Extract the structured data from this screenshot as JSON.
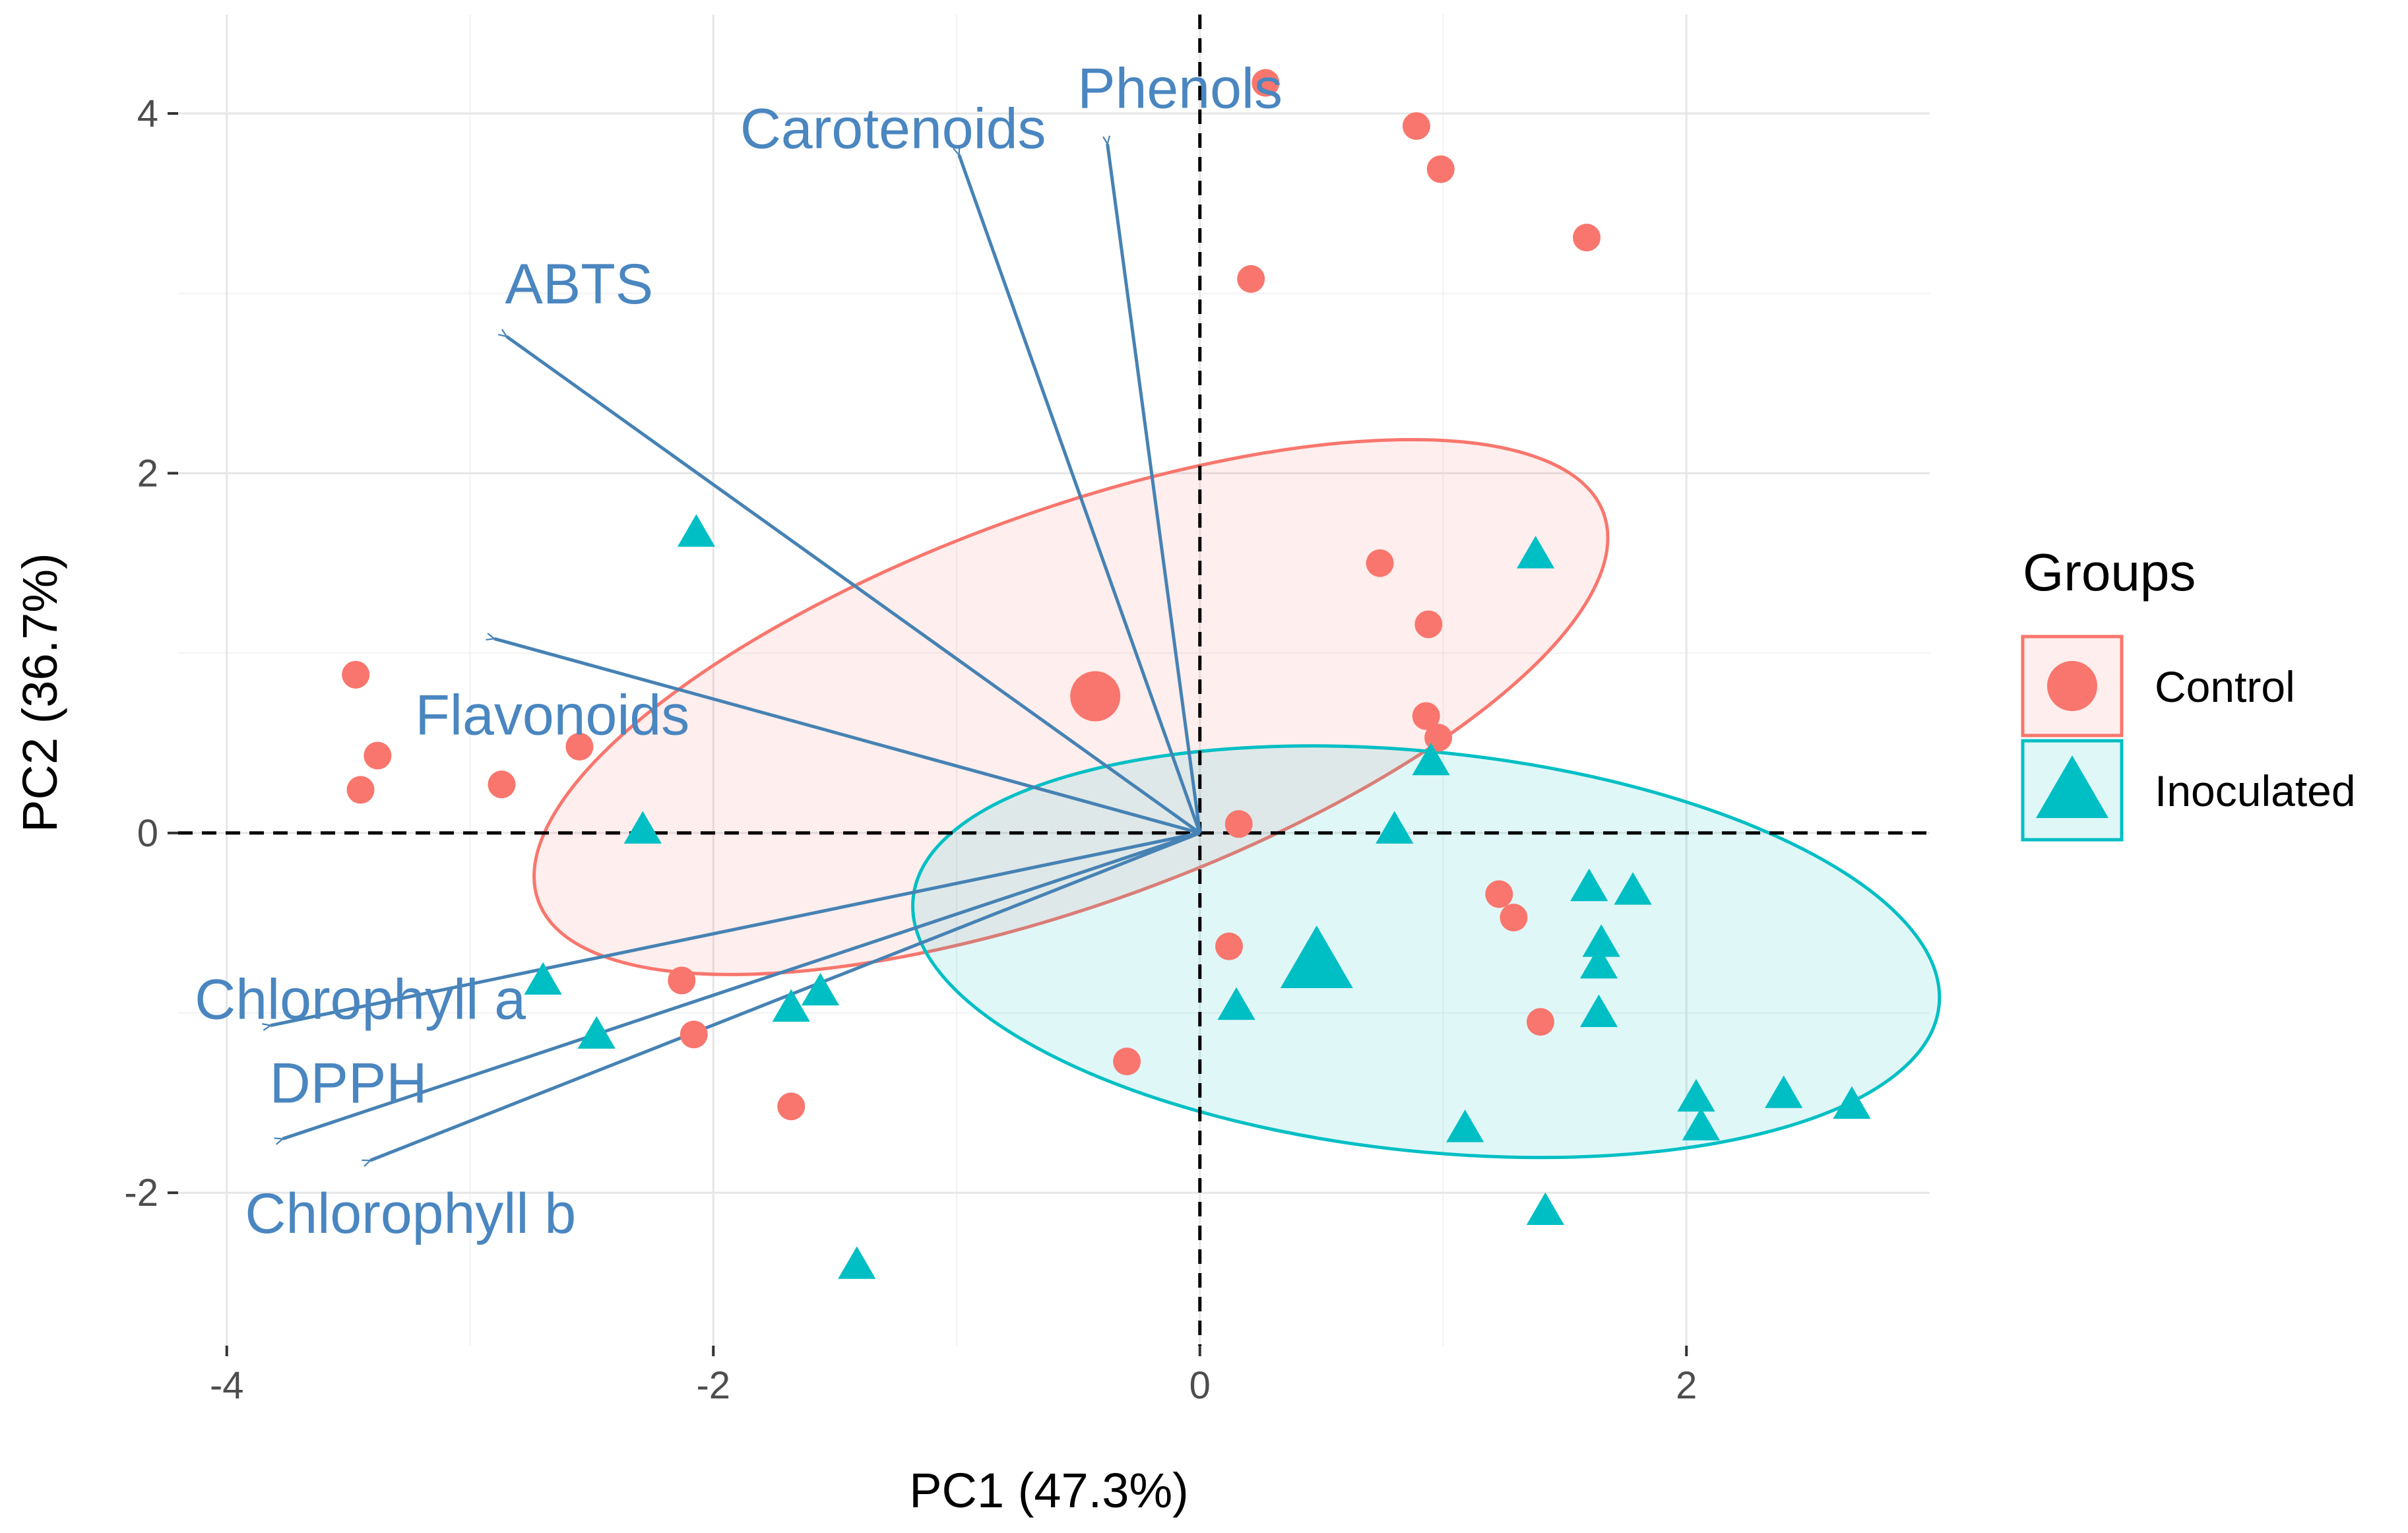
{
  "chart_data": {
    "type": "scatter",
    "subtype": "pca-biplot",
    "title": "",
    "xlabel": "PC1 (47.3%)",
    "ylabel": "PC2 (36.7%)",
    "xlim": [
      -4.2,
      3.0
    ],
    "ylim": [
      -2.85,
      4.55
    ],
    "xticks": [
      -4,
      -2,
      0,
      2
    ],
    "yticks": [
      -2,
      0,
      2,
      4
    ],
    "xtick_labels": [
      "-4",
      "-2",
      "0",
      "2"
    ],
    "ytick_labels": [
      "-2",
      "0",
      "2",
      "4"
    ],
    "grid": true,
    "reference_lines": {
      "x": 0,
      "y": 0,
      "style": "dashed"
    },
    "legend": {
      "title": "Groups",
      "position": "right",
      "entries": [
        {
          "label": "Control",
          "color": "#F8766D",
          "shape": "circle"
        },
        {
          "label": "Inoculated",
          "color": "#00BFC4",
          "shape": "triangle"
        }
      ]
    },
    "series": [
      {
        "name": "Control",
        "color": "#F8766D",
        "shape": "circle",
        "points": [
          {
            "x": 0.27,
            "y": 4.17
          },
          {
            "x": 0.89,
            "y": 3.93
          },
          {
            "x": 0.99,
            "y": 3.69
          },
          {
            "x": 1.59,
            "y": 3.31
          },
          {
            "x": 0.21,
            "y": 3.08
          },
          {
            "x": 0.74,
            "y": 1.5
          },
          {
            "x": 0.94,
            "y": 1.16
          },
          {
            "x": 0.93,
            "y": 0.65
          },
          {
            "x": 0.98,
            "y": 0.53
          },
          {
            "x": 0.16,
            "y": 0.05
          },
          {
            "x": 1.23,
            "y": -0.34
          },
          {
            "x": 1.29,
            "y": -0.47
          },
          {
            "x": 0.12,
            "y": -0.63
          },
          {
            "x": 1.4,
            "y": -1.05
          },
          {
            "x": -0.3,
            "y": -1.27
          },
          {
            "x": -1.68,
            "y": -1.52
          },
          {
            "x": -2.13,
            "y": -0.82
          },
          {
            "x": -2.08,
            "y": -1.12
          },
          {
            "x": -2.55,
            "y": 0.48
          },
          {
            "x": -2.87,
            "y": 0.27
          },
          {
            "x": -3.47,
            "y": 0.88
          },
          {
            "x": -3.38,
            "y": 0.43
          },
          {
            "x": -3.45,
            "y": 0.24
          }
        ],
        "centroid": {
          "x": -0.43,
          "y": 0.76
        },
        "ellipse": {
          "center": [
            -0.53,
            0.7
          ],
          "semi_axes": [
            2.33,
            1.09
          ],
          "angle_deg": 20
        }
      },
      {
        "name": "Inoculated",
        "color": "#00BFC4",
        "shape": "triangle",
        "points": [
          {
            "x": -2.07,
            "y": 1.66
          },
          {
            "x": -2.29,
            "y": 0.01
          },
          {
            "x": -2.7,
            "y": -0.83
          },
          {
            "x": -2.48,
            "y": -1.13
          },
          {
            "x": -1.68,
            "y": -0.98
          },
          {
            "x": -1.56,
            "y": -0.89
          },
          {
            "x": -1.41,
            "y": -2.41
          },
          {
            "x": 0.15,
            "y": -0.97
          },
          {
            "x": 0.8,
            "y": 0.01
          },
          {
            "x": 0.95,
            "y": 0.39
          },
          {
            "x": 1.38,
            "y": 1.54
          },
          {
            "x": 1.6,
            "y": -0.31
          },
          {
            "x": 1.78,
            "y": -0.33
          },
          {
            "x": 1.65,
            "y": -0.62
          },
          {
            "x": 1.64,
            "y": -0.74
          },
          {
            "x": 1.64,
            "y": -1.01
          },
          {
            "x": 1.09,
            "y": -1.65
          },
          {
            "x": 1.42,
            "y": -2.11
          },
          {
            "x": 2.04,
            "y": -1.48
          },
          {
            "x": 2.06,
            "y": -1.64
          },
          {
            "x": 2.4,
            "y": -1.46
          },
          {
            "x": 2.68,
            "y": -1.52
          }
        ],
        "centroid": {
          "x": 0.48,
          "y": -0.73
        },
        "ellipse": {
          "center": [
            0.93,
            -0.66
          ],
          "semi_axes": [
            2.12,
            1.11
          ],
          "angle_deg": -6
        }
      }
    ],
    "loadings": [
      {
        "label": "Phenols",
        "x": -0.38,
        "y": 3.83
      },
      {
        "label": "Carotenoids",
        "x": -0.99,
        "y": 3.77
      },
      {
        "label": "ABTS",
        "x": -2.85,
        "y": 2.76
      },
      {
        "label": "Flavonoids",
        "x": -2.9,
        "y": 1.08
      },
      {
        "label": "Chlorophyll a",
        "x": -3.82,
        "y": -1.07
      },
      {
        "label": "DPPH",
        "x": -3.77,
        "y": -1.7
      },
      {
        "label": "Chlorophyll b",
        "x": -3.41,
        "y": -1.82
      }
    ],
    "loading_color": "#4682B4",
    "loading_label_color": "#4A86C0"
  }
}
